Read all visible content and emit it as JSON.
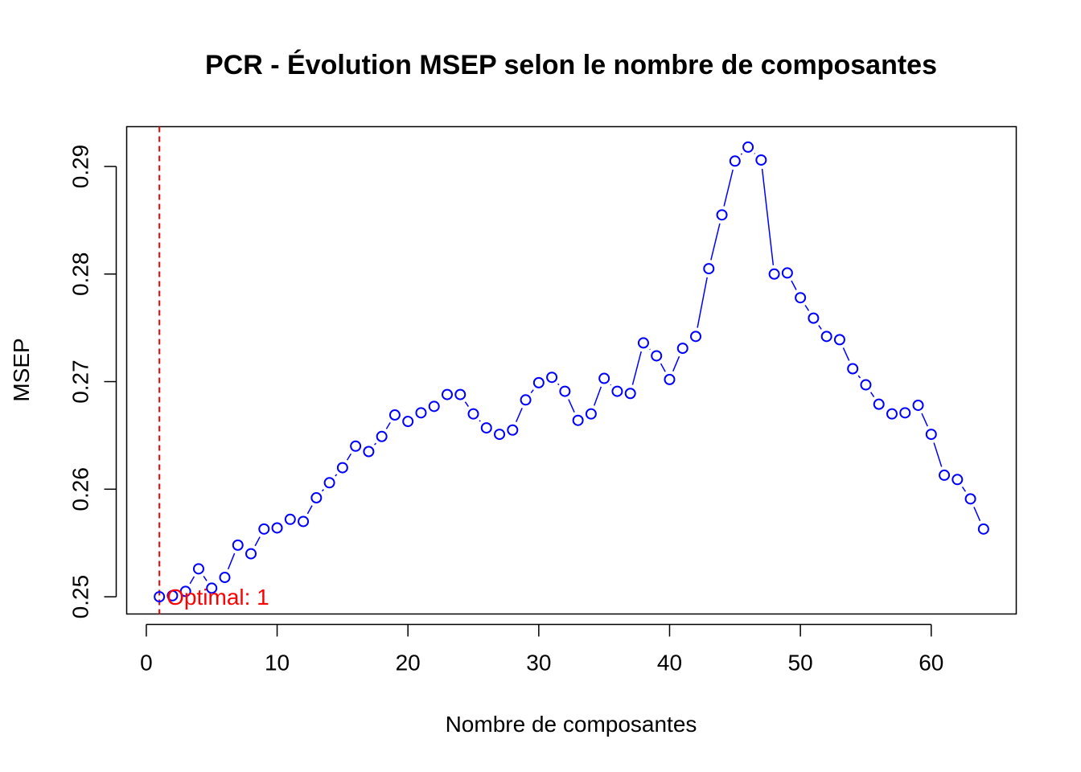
{
  "chart_data": {
    "type": "scatter",
    "title": "PCR - Évolution MSEP selon le nombre de composantes",
    "xlabel": "Nombre de composantes",
    "ylabel": "MSEP",
    "xlim": [
      -1.5,
      66.5
    ],
    "ylim": [
      0.2484,
      0.2937
    ],
    "xticks": [
      0,
      10,
      20,
      30,
      40,
      50,
      60
    ],
    "yticks": [
      0.25,
      0.26,
      0.27,
      0.28,
      0.29
    ],
    "xtick_labels": [
      "0",
      "10",
      "20",
      "30",
      "40",
      "50",
      "60"
    ],
    "ytick_labels": [
      "0.25",
      "0.26",
      "0.27",
      "0.28",
      "0.29"
    ],
    "grid": false,
    "series": [
      {
        "style": "both",
        "color": "#0000ff",
        "x": [
          1,
          2,
          3,
          4,
          5,
          6,
          7,
          8,
          9,
          10,
          11,
          12,
          13,
          14,
          15,
          16,
          17,
          18,
          19,
          20,
          21,
          22,
          23,
          24,
          25,
          26,
          27,
          28,
          29,
          30,
          31,
          32,
          33,
          34,
          35,
          36,
          37,
          38,
          39,
          40,
          41,
          42,
          43,
          44,
          45,
          46,
          47,
          48,
          49,
          50,
          51,
          52,
          53,
          54,
          55,
          56,
          57,
          58,
          59,
          60,
          61,
          62,
          63,
          64
        ],
        "y": [
          0.25,
          0.2501,
          0.2505,
          0.2526,
          0.2508,
          0.2518,
          0.2548,
          0.254,
          0.2563,
          0.2564,
          0.2572,
          0.257,
          0.2592,
          0.2606,
          0.262,
          0.264,
          0.2635,
          0.2649,
          0.2669,
          0.2663,
          0.2671,
          0.2677,
          0.2688,
          0.2688,
          0.267,
          0.2657,
          0.2651,
          0.2655,
          0.2683,
          0.2699,
          0.2704,
          0.2691,
          0.2664,
          0.267,
          0.2703,
          0.2691,
          0.2689,
          0.2736,
          0.2724,
          0.2702,
          0.2731,
          0.2742,
          0.2805,
          0.2855,
          0.2905,
          0.2918,
          0.2906,
          0.28,
          0.2801,
          0.2778,
          0.2759,
          0.2742,
          0.2739,
          0.2712,
          0.2697,
          0.2679,
          0.267,
          0.2671,
          0.2678,
          0.2651,
          0.2613,
          0.2609,
          0.2591,
          0.2563
        ]
      }
    ],
    "vline": {
      "x": 1,
      "color": "#ff0000",
      "style": "dashed"
    },
    "annotation": {
      "text": "Optimal: 1",
      "x": 1,
      "y": 0.25,
      "color": "#ff0000"
    }
  }
}
